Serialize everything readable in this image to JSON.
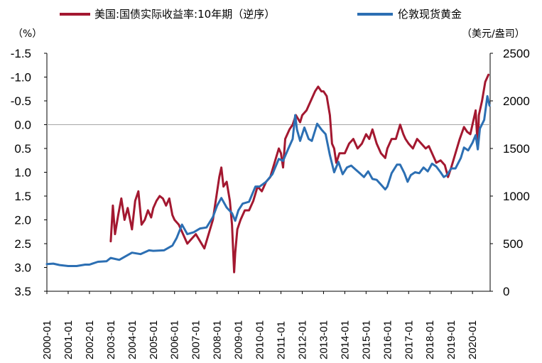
{
  "chart_data": {
    "type": "line",
    "legend": [
      {
        "label": "美国:国债实际收益率:10年期（逆序）",
        "color": "#a31830"
      },
      {
        "label": "伦敦现货黄金",
        "color": "#2c6fb3"
      }
    ],
    "legend_position": "top",
    "y_left": {
      "unit": "（%）",
      "ticks": [
        "-1.5",
        "-1.0",
        "-0.5",
        "0.0",
        "0.5",
        "1.0",
        "1.5",
        "2.0",
        "2.5",
        "3.0",
        "3.5"
      ],
      "range": [
        -1.5,
        3.5
      ],
      "inverted": true
    },
    "y_right": {
      "unit": "（美元/盎司）",
      "ticks": [
        "2500",
        "2000",
        "1500",
        "1000",
        "500",
        "0"
      ],
      "range": [
        0,
        2500
      ]
    },
    "x_ticks": [
      "2000-01",
      "2001-01",
      "2002-01",
      "2003-01",
      "2004-01",
      "2005-01",
      "2006-01",
      "2007-01",
      "2008-01",
      "2009-01",
      "2010-01",
      "2011-01",
      "2012-01",
      "2013-01",
      "2014-01",
      "2015-01",
      "2016-01",
      "2017-01",
      "2018-01",
      "2019-01",
      "2020-01"
    ],
    "x_range": [
      2000.0,
      2020.83
    ],
    "reference_line": {
      "axis": "y_left",
      "value": 0.0
    },
    "series": [
      {
        "name": "美国:国债实际收益率:10年期（逆序）",
        "axis": "y_left",
        "color": "#a31830",
        "points": [
          [
            2003.0,
            2.45
          ],
          [
            2003.1,
            1.7
          ],
          [
            2003.2,
            2.3
          ],
          [
            2003.35,
            1.9
          ],
          [
            2003.5,
            1.55
          ],
          [
            2003.65,
            2.0
          ],
          [
            2003.8,
            1.75
          ],
          [
            2004.0,
            2.2
          ],
          [
            2004.15,
            1.6
          ],
          [
            2004.3,
            1.4
          ],
          [
            2004.45,
            2.1
          ],
          [
            2004.6,
            2.0
          ],
          [
            2004.75,
            1.8
          ],
          [
            2004.9,
            1.95
          ],
          [
            2005.0,
            1.75
          ],
          [
            2005.15,
            1.6
          ],
          [
            2005.3,
            1.5
          ],
          [
            2005.45,
            1.55
          ],
          [
            2005.6,
            1.7
          ],
          [
            2005.75,
            1.55
          ],
          [
            2005.9,
            1.9
          ],
          [
            2006.0,
            2.0
          ],
          [
            2006.2,
            2.1
          ],
          [
            2006.4,
            2.3
          ],
          [
            2006.6,
            2.5
          ],
          [
            2006.8,
            2.4
          ],
          [
            2007.0,
            2.3
          ],
          [
            2007.2,
            2.45
          ],
          [
            2007.4,
            2.6
          ],
          [
            2007.6,
            2.3
          ],
          [
            2007.8,
            2.0
          ],
          [
            2007.9,
            1.7
          ],
          [
            2008.0,
            1.4
          ],
          [
            2008.1,
            1.1
          ],
          [
            2008.2,
            0.9
          ],
          [
            2008.3,
            1.3
          ],
          [
            2008.45,
            1.2
          ],
          [
            2008.6,
            1.6
          ],
          [
            2008.7,
            2.1
          ],
          [
            2008.8,
            3.1
          ],
          [
            2008.85,
            2.7
          ],
          [
            2008.95,
            2.2
          ],
          [
            2009.1,
            2.0
          ],
          [
            2009.3,
            1.8
          ],
          [
            2009.5,
            1.8
          ],
          [
            2009.7,
            1.6
          ],
          [
            2009.9,
            1.3
          ],
          [
            2010.1,
            1.4
          ],
          [
            2010.3,
            1.2
          ],
          [
            2010.5,
            1.1
          ],
          [
            2010.7,
            0.8
          ],
          [
            2010.9,
            0.5
          ],
          [
            2011.0,
            0.6
          ],
          [
            2011.1,
            0.9
          ],
          [
            2011.2,
            0.3
          ],
          [
            2011.4,
            0.1
          ],
          [
            2011.55,
            0.0
          ],
          [
            2011.7,
            -0.2
          ],
          [
            2011.9,
            -0.05
          ],
          [
            2012.0,
            -0.2
          ],
          [
            2012.2,
            -0.3
          ],
          [
            2012.4,
            -0.5
          ],
          [
            2012.6,
            -0.7
          ],
          [
            2012.75,
            -0.8
          ],
          [
            2012.9,
            -0.7
          ],
          [
            2013.0,
            -0.7
          ],
          [
            2013.15,
            -0.6
          ],
          [
            2013.3,
            -0.2
          ],
          [
            2013.4,
            0.4
          ],
          [
            2013.5,
            0.5
          ],
          [
            2013.6,
            0.8
          ],
          [
            2013.75,
            0.6
          ],
          [
            2014.0,
            0.6
          ],
          [
            2014.2,
            0.4
          ],
          [
            2014.4,
            0.3
          ],
          [
            2014.6,
            0.5
          ],
          [
            2014.8,
            0.4
          ],
          [
            2015.0,
            0.2
          ],
          [
            2015.15,
            0.3
          ],
          [
            2015.3,
            0.1
          ],
          [
            2015.5,
            0.4
          ],
          [
            2015.7,
            0.6
          ],
          [
            2015.9,
            0.7
          ],
          [
            2016.0,
            0.5
          ],
          [
            2016.2,
            0.3
          ],
          [
            2016.4,
            0.3
          ],
          [
            2016.6,
            0.0
          ],
          [
            2016.75,
            0.2
          ],
          [
            2016.85,
            0.3
          ],
          [
            2017.0,
            0.4
          ],
          [
            2017.2,
            0.5
          ],
          [
            2017.4,
            0.3
          ],
          [
            2017.6,
            0.4
          ],
          [
            2017.8,
            0.5
          ],
          [
            2017.95,
            0.45
          ],
          [
            2018.1,
            0.6
          ],
          [
            2018.3,
            0.8
          ],
          [
            2018.5,
            0.75
          ],
          [
            2018.7,
            0.85
          ],
          [
            2018.85,
            1.1
          ],
          [
            2019.0,
            0.9
          ],
          [
            2019.2,
            0.6
          ],
          [
            2019.4,
            0.3
          ],
          [
            2019.6,
            0.05
          ],
          [
            2019.75,
            0.15
          ],
          [
            2019.9,
            0.2
          ],
          [
            2020.0,
            0.0
          ],
          [
            2020.15,
            -0.3
          ],
          [
            2020.25,
            0.5
          ],
          [
            2020.3,
            -0.2
          ],
          [
            2020.45,
            -0.5
          ],
          [
            2020.6,
            -0.9
          ],
          [
            2020.75,
            -1.05
          ]
        ]
      },
      {
        "name": "伦敦现货黄金",
        "axis": "y_right",
        "color": "#2c6fb3",
        "points": [
          [
            2000.0,
            285
          ],
          [
            2000.3,
            290
          ],
          [
            2000.6,
            275
          ],
          [
            2001.0,
            265
          ],
          [
            2001.4,
            265
          ],
          [
            2001.8,
            280
          ],
          [
            2002.0,
            280
          ],
          [
            2002.4,
            310
          ],
          [
            2002.8,
            315
          ],
          [
            2003.0,
            350
          ],
          [
            2003.4,
            330
          ],
          [
            2003.8,
            380
          ],
          [
            2004.0,
            405
          ],
          [
            2004.4,
            390
          ],
          [
            2004.8,
            430
          ],
          [
            2005.0,
            425
          ],
          [
            2005.5,
            430
          ],
          [
            2005.9,
            480
          ],
          [
            2006.1,
            560
          ],
          [
            2006.35,
            700
          ],
          [
            2006.6,
            600
          ],
          [
            2006.9,
            620
          ],
          [
            2007.2,
            660
          ],
          [
            2007.5,
            670
          ],
          [
            2007.8,
            780
          ],
          [
            2008.0,
            900
          ],
          [
            2008.2,
            980
          ],
          [
            2008.45,
            880
          ],
          [
            2008.7,
            820
          ],
          [
            2008.85,
            740
          ],
          [
            2009.0,
            850
          ],
          [
            2009.2,
            920
          ],
          [
            2009.5,
            940
          ],
          [
            2009.8,
            1100
          ],
          [
            2010.0,
            1100
          ],
          [
            2010.3,
            1150
          ],
          [
            2010.6,
            1230
          ],
          [
            2010.9,
            1390
          ],
          [
            2011.1,
            1370
          ],
          [
            2011.35,
            1500
          ],
          [
            2011.55,
            1600
          ],
          [
            2011.67,
            1850
          ],
          [
            2011.75,
            1700
          ],
          [
            2011.9,
            1580
          ],
          [
            2012.1,
            1720
          ],
          [
            2012.3,
            1600
          ],
          [
            2012.45,
            1580
          ],
          [
            2012.7,
            1760
          ],
          [
            2012.9,
            1700
          ],
          [
            2013.1,
            1650
          ],
          [
            2013.3,
            1430
          ],
          [
            2013.5,
            1250
          ],
          [
            2013.7,
            1360
          ],
          [
            2013.9,
            1230
          ],
          [
            2014.1,
            1300
          ],
          [
            2014.3,
            1320
          ],
          [
            2014.5,
            1280
          ],
          [
            2014.7,
            1240
          ],
          [
            2014.9,
            1200
          ],
          [
            2015.1,
            1260
          ],
          [
            2015.3,
            1180
          ],
          [
            2015.5,
            1170
          ],
          [
            2015.7,
            1120
          ],
          [
            2015.9,
            1070
          ],
          [
            2016.0,
            1100
          ],
          [
            2016.2,
            1240
          ],
          [
            2016.45,
            1330
          ],
          [
            2016.6,
            1330
          ],
          [
            2016.8,
            1240
          ],
          [
            2016.95,
            1150
          ],
          [
            2017.1,
            1220
          ],
          [
            2017.3,
            1250
          ],
          [
            2017.5,
            1240
          ],
          [
            2017.7,
            1300
          ],
          [
            2017.9,
            1260
          ],
          [
            2018.1,
            1340
          ],
          [
            2018.3,
            1310
          ],
          [
            2018.5,
            1250
          ],
          [
            2018.65,
            1200
          ],
          [
            2018.8,
            1220
          ],
          [
            2019.0,
            1290
          ],
          [
            2019.2,
            1290
          ],
          [
            2019.45,
            1400
          ],
          [
            2019.6,
            1510
          ],
          [
            2019.8,
            1480
          ],
          [
            2020.0,
            1560
          ],
          [
            2020.15,
            1640
          ],
          [
            2020.25,
            1490
          ],
          [
            2020.35,
            1710
          ],
          [
            2020.55,
            1800
          ],
          [
            2020.7,
            2050
          ],
          [
            2020.8,
            1950
          ]
        ]
      }
    ]
  }
}
